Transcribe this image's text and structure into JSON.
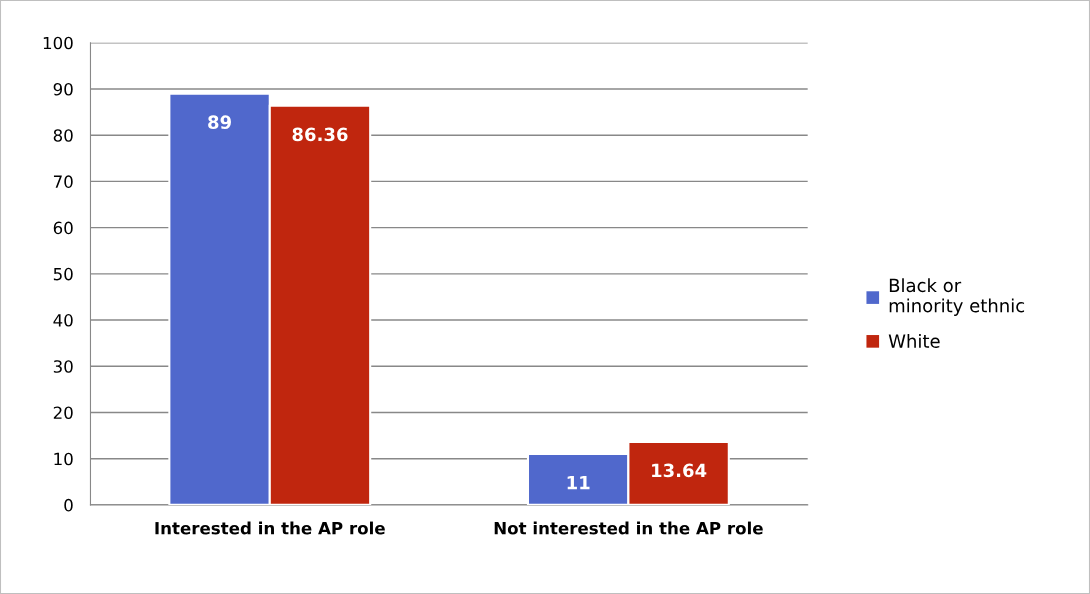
{
  "chart_data": {
    "type": "bar",
    "categories": [
      "Interested in the AP role",
      "Not interested in the AP role"
    ],
    "series": [
      {
        "name": "Black or\nminority ethnic",
        "color": "#5068cc",
        "values": [
          89,
          11
        ]
      },
      {
        "name": "White",
        "color": "#c0260e",
        "values": [
          86.36,
          13.64
        ]
      }
    ],
    "ylim": [
      0,
      100
    ],
    "yticks": [
      0,
      10,
      20,
      30,
      40,
      50,
      60,
      70,
      80,
      90,
      100
    ],
    "grid": "y",
    "legend": "right",
    "data_labels": true
  }
}
